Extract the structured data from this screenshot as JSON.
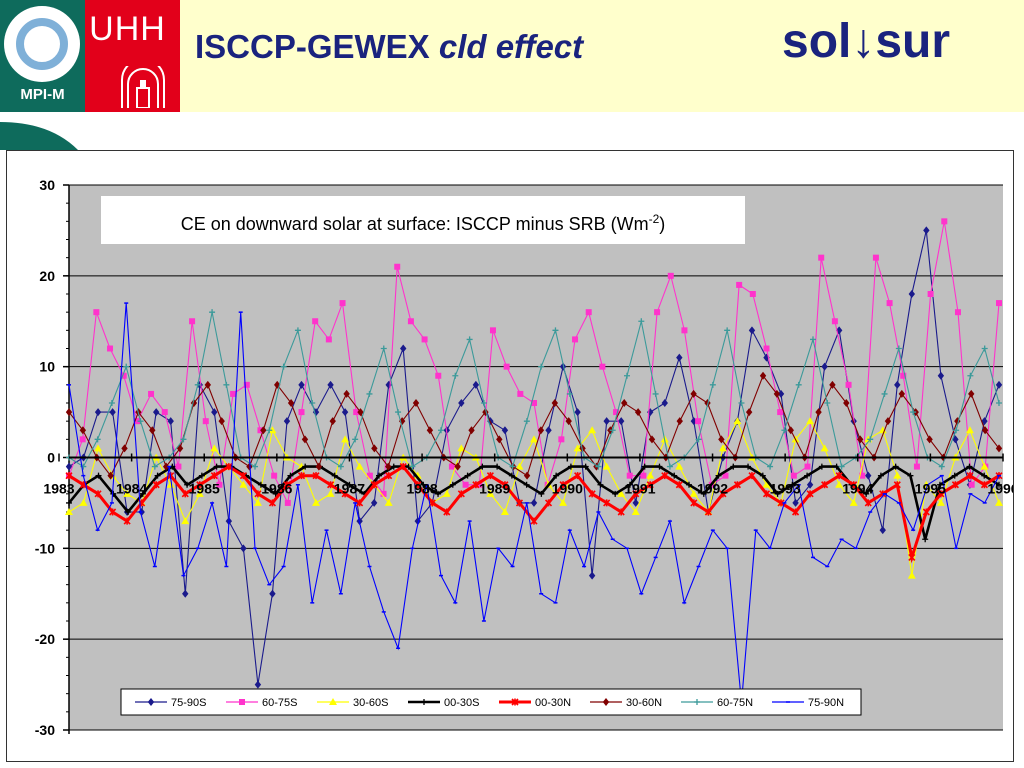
{
  "header": {
    "mpi_label": "MPI-M",
    "uhh_label": "UHH",
    "title_main": "ISCCP-GEWEX ",
    "title_italic": "cld effect",
    "title_right": "sol↓sur"
  },
  "colors": {
    "header_bg": "#ffffcc",
    "title": "#1a237e",
    "plot_bg": "#c0c0c0"
  },
  "chart_data": {
    "type": "line",
    "title": "CE on downward solar at surface: ISCCP minus SRB (Wm",
    "title_sup": "-2",
    "title_suffix": ")",
    "ylim": [
      -30,
      30
    ],
    "yticks": [
      30,
      20,
      10,
      0,
      -10,
      -20,
      -30
    ],
    "xlim": [
      1983,
      1996
    ],
    "xtick_labels": [
      "1983",
      "1984",
      "1985",
      "1986",
      "1987",
      "1988",
      "1989",
      "1990",
      "1991",
      "1992",
      "1993",
      "1994",
      "1995",
      "1996"
    ],
    "grid": true,
    "legend_position": "bottom",
    "series": [
      {
        "name": "75-90S",
        "color": "#1a1a8c",
        "marker": "diamond",
        "values": [
          -1,
          0,
          5,
          5,
          -6,
          -6,
          5,
          4,
          -15,
          8,
          5,
          -7,
          -10,
          -25,
          -15,
          4,
          8,
          5,
          8,
          5,
          -7,
          -5,
          8,
          12,
          -7,
          -5,
          3,
          6,
          8,
          4,
          3,
          -5,
          -5,
          3,
          10,
          5,
          -13,
          4,
          4,
          -5,
          5,
          6,
          11,
          4,
          -6,
          0,
          4,
          14,
          11,
          7,
          -5,
          -3,
          10,
          14,
          4,
          -2,
          -8,
          8,
          18,
          25,
          9,
          2,
          -3,
          4,
          8
        ]
      },
      {
        "name": "60-75S",
        "color": "#ff33cc",
        "marker": "square",
        "values": [
          -2,
          2,
          16,
          12,
          9,
          4,
          7,
          5,
          -1,
          15,
          4,
          -3,
          7,
          8,
          3,
          -2,
          -5,
          5,
          15,
          13,
          17,
          5,
          -2,
          -4,
          21,
          15,
          13,
          9,
          -1,
          -3,
          -3,
          14,
          10,
          7,
          6,
          -3,
          2,
          13,
          16,
          10,
          5,
          -2,
          -2,
          16,
          20,
          14,
          4,
          -3,
          -2,
          19,
          18,
          12,
          5,
          -2,
          -1,
          22,
          15,
          8,
          -2,
          22,
          17,
          9,
          -1,
          18,
          26,
          16,
          -3,
          -1,
          17
        ]
      },
      {
        "name": "30-60S",
        "color": "#ffff00",
        "marker": "triangle",
        "values": [
          -6,
          -5,
          1,
          -2,
          -4,
          -5,
          0,
          -3,
          -7,
          -4,
          1,
          -1,
          -3,
          -5,
          3,
          0,
          -1,
          -5,
          -4,
          2,
          -1,
          -3,
          -5,
          0,
          -2,
          -5,
          -4,
          1,
          0,
          -4,
          -6,
          -1,
          2,
          -3,
          -5,
          1,
          3,
          -1,
          -4,
          -6,
          -2,
          2,
          -1,
          -4,
          -6,
          1,
          4,
          0,
          -3,
          -5,
          2,
          4,
          1,
          -3,
          -5,
          2,
          3,
          -2,
          -13,
          -3,
          -5,
          0,
          3,
          -1,
          -5
        ]
      },
      {
        "name": "00-30S",
        "color": "#000000",
        "marker": "plus",
        "values": [
          -5,
          -3,
          -2,
          -4,
          -6,
          -4,
          -2,
          -1,
          -3,
          -2,
          -1,
          -1,
          -2,
          -3,
          -4,
          -2,
          -1,
          -1,
          -2,
          -3,
          -4,
          -2,
          -1,
          -1,
          -3,
          -4,
          -3,
          -2,
          -1,
          -1,
          -2,
          -3,
          -4,
          -2,
          -1,
          -1,
          -3,
          -4,
          -3,
          -1,
          -1,
          -2,
          -3,
          -4,
          -2,
          -1,
          -1,
          -2,
          -4,
          -3,
          -2,
          -1,
          -1,
          -3,
          -4,
          -2,
          -1,
          -2,
          -9,
          -3,
          -2,
          -1,
          -2,
          -3
        ]
      },
      {
        "name": "00-30N",
        "color": "#ff0000",
        "marker": "star",
        "values": [
          -2,
          -3,
          -4,
          -6,
          -7,
          -5,
          -3,
          -2,
          -4,
          -3,
          -2,
          -1,
          -2,
          -4,
          -5,
          -3,
          -2,
          -2,
          -3,
          -4,
          -5,
          -3,
          -2,
          -1,
          -3,
          -5,
          -6,
          -4,
          -3,
          -2,
          -3,
          -5,
          -7,
          -5,
          -3,
          -2,
          -4,
          -5,
          -6,
          -4,
          -3,
          -2,
          -3,
          -5,
          -6,
          -4,
          -3,
          -2,
          -4,
          -5,
          -6,
          -4,
          -3,
          -2,
          -3,
          -5,
          -4,
          -3,
          -11,
          -6,
          -4,
          -3,
          -2,
          -3,
          -2
        ]
      },
      {
        "name": "30-60N",
        "color": "#800000",
        "marker": "diamond",
        "values": [
          5,
          3,
          0,
          -2,
          1,
          5,
          3,
          -1,
          1,
          6,
          8,
          4,
          0,
          -1,
          3,
          8,
          6,
          2,
          -1,
          4,
          7,
          5,
          1,
          -1,
          4,
          6,
          3,
          0,
          -1,
          3,
          5,
          2,
          -1,
          -2,
          3,
          6,
          4,
          1,
          -1,
          3,
          6,
          5,
          2,
          0,
          4,
          7,
          6,
          2,
          0,
          5,
          9,
          7,
          3,
          0,
          5,
          8,
          6,
          2,
          0,
          4,
          7,
          5,
          2,
          0,
          4,
          7,
          3,
          1
        ]
      },
      {
        "name": "60-75N",
        "color": "#3c9a9a",
        "marker": "plus",
        "values": [
          0,
          -1,
          2,
          6,
          10,
          4,
          -1,
          0,
          2,
          8,
          16,
          8,
          0,
          -1,
          3,
          10,
          14,
          6,
          0,
          -1,
          2,
          7,
          12,
          5,
          -1,
          0,
          3,
          9,
          13,
          6,
          0,
          -1,
          4,
          10,
          14,
          7,
          0,
          -1,
          3,
          9,
          15,
          7,
          -1,
          0,
          2,
          8,
          14,
          6,
          0,
          -1,
          3,
          8,
          13,
          6,
          -1,
          0,
          2,
          7,
          12,
          5,
          0,
          -1,
          3,
          9,
          12,
          6
        ]
      },
      {
        "name": "75-90N",
        "color": "#0000ff",
        "marker": "dash",
        "values": [
          8,
          -2,
          -8,
          -5,
          17,
          -6,
          -12,
          -1,
          -13,
          -10,
          -5,
          -12,
          16,
          -10,
          -14,
          -12,
          -3,
          -16,
          -8,
          -15,
          -5,
          -12,
          -17,
          -21,
          -10,
          -3,
          -13,
          -16,
          -7,
          -18,
          -10,
          -12,
          -5,
          -15,
          -16,
          -8,
          -12,
          -6,
          -9,
          -10,
          -15,
          -11,
          -7,
          -16,
          -12,
          -8,
          -10,
          -27,
          -8,
          -10,
          -5,
          -3,
          -11,
          -12,
          -9,
          -10,
          -6,
          -4,
          -5,
          -8,
          -3,
          -2,
          -10,
          -4,
          -5,
          -2
        ]
      }
    ]
  }
}
